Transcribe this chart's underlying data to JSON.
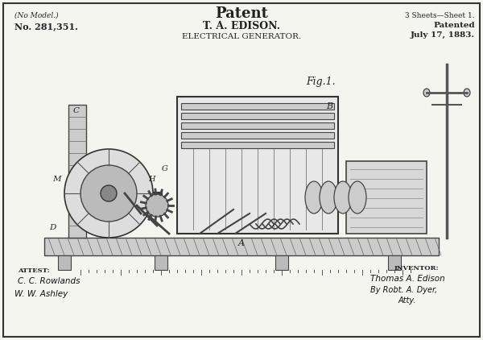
{
  "bg_color": "#f5f5f0",
  "border_color": "#333333",
  "text_color": "#222222",
  "title_main": "Patent",
  "title_sub1": "T. A. EDISON.",
  "title_sub2": "ELECTRICAL GENERATOR.",
  "top_left": "(No Model.)",
  "top_right_line1": "3 Sheets—Sheet 1.",
  "top_right_line2": "Patented",
  "top_right_line3": "July 17, 1883.",
  "patent_no": "No. 281,351.",
  "fig_label": "Fig.1.",
  "attest_label": "ATTEST:",
  "attest_sig1": "C. C. Rowlands",
  "attest_sig2": "W. W. Ashley",
  "inventor_label": "INVENTOR:",
  "inventor_sig1": "Thomas A. Edison",
  "inventor_sig2": "By Robt. A. Dyer,",
  "inventor_sig3": "Atty.",
  "label_A": "A",
  "label_B": "B",
  "label_C": "C",
  "label_M": "M",
  "label_D": "D",
  "label_H": "H",
  "label_G": "G"
}
